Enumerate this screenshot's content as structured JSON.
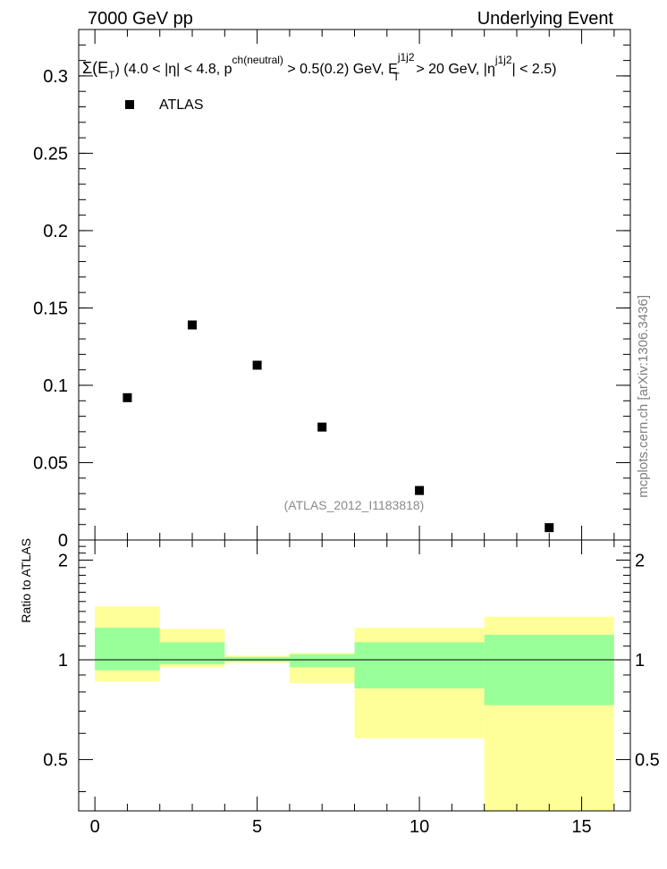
{
  "header": {
    "energy_label": "7000 GeV pp",
    "process_label": "Underlying Event"
  },
  "side_label": "mcplots.cern.ch [arXiv:1306.3436]",
  "analysis_tag": "(ATLAS_2012_I1183818)",
  "chart_data": [
    {
      "type": "scatter",
      "title_parts": {
        "main": "Σ(E",
        "main_sub": "T",
        "t1": ") (4.0 < |η| < 4.8, p",
        "t1_sup": "ch(neutral)",
        "t2": " > 0.5(0.2) GeV, E",
        "t2_sup": "j1j2",
        "t2_sub": "T",
        "t3": " > 20 GeV, |η",
        "t3_sup": "j1j2",
        "t4": "| < 2.5)"
      },
      "legend": {
        "entries": [
          "ATLAS"
        ],
        "placement": "top-left"
      },
      "xlim": [
        -0.5,
        16.5
      ],
      "ylim": [
        0,
        0.33
      ],
      "yticks": [
        {
          "v": 0,
          "label": "0"
        },
        {
          "v": 0.05,
          "label": "0.05"
        },
        {
          "v": 0.1,
          "label": "0.1"
        },
        {
          "v": 0.15,
          "label": "0.15"
        },
        {
          "v": 0.2,
          "label": "0.2"
        },
        {
          "v": 0.25,
          "label": "0.25"
        },
        {
          "v": 0.3,
          "label": "0.3"
        }
      ],
      "series": [
        {
          "name": "ATLAS",
          "color": "#000000",
          "marker": "square",
          "x": [
            1,
            3,
            5,
            7,
            10,
            14
          ],
          "y": [
            0.092,
            0.139,
            0.113,
            0.073,
            0.032,
            0.008
          ]
        }
      ]
    },
    {
      "type": "area",
      "ylabel": "Ratio to ATLAS",
      "xlim": [
        -0.5,
        16.5
      ],
      "ylim": [
        0.35,
        2.3
      ],
      "xticks": [
        {
          "v": 0,
          "label": "0"
        },
        {
          "v": 5,
          "label": "5"
        },
        {
          "v": 10,
          "label": "10"
        },
        {
          "v": 15,
          "label": "15"
        }
      ],
      "yticks": [
        {
          "v": 0.5,
          "label": "0.5"
        },
        {
          "v": 1,
          "label": "1"
        },
        {
          "v": 2,
          "label": "2"
        }
      ],
      "reference_line": 1,
      "bins": [
        {
          "lo": 0,
          "hi": 2,
          "yellow": [
            0.86,
            1.45
          ],
          "green": [
            0.93,
            1.25
          ]
        },
        {
          "lo": 2,
          "hi": 4,
          "yellow": [
            0.95,
            1.24
          ],
          "green": [
            0.97,
            1.13
          ]
        },
        {
          "lo": 4,
          "hi": 6,
          "yellow": [
            0.98,
            1.03
          ],
          "green": [
            0.99,
            1.02
          ]
        },
        {
          "lo": 6,
          "hi": 8,
          "yellow": [
            0.85,
            1.05
          ],
          "green": [
            0.95,
            1.04
          ]
        },
        {
          "lo": 8,
          "hi": 12,
          "yellow": [
            0.58,
            1.25
          ],
          "green": [
            0.82,
            1.13
          ]
        },
        {
          "lo": 12,
          "hi": 16,
          "yellow": [
            0.35,
            1.35
          ],
          "green": [
            0.73,
            1.19
          ]
        }
      ],
      "colors": {
        "yellow": "#ffff99",
        "green": "#99ff99"
      }
    }
  ]
}
